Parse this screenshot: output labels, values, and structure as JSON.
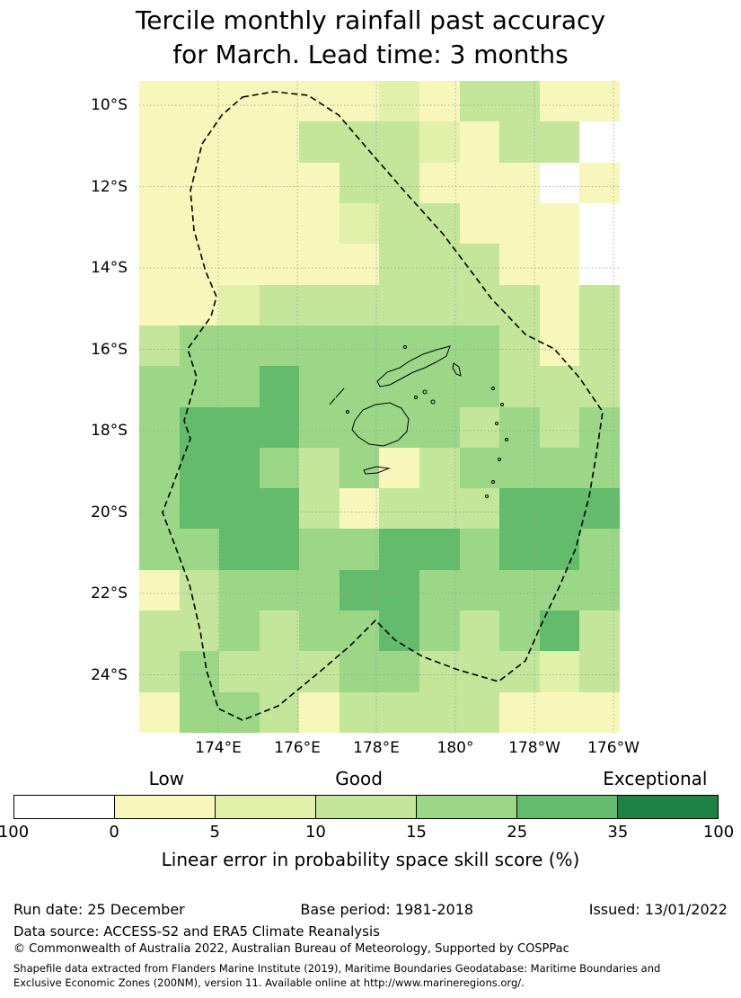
{
  "title": {
    "line1": "Tercile monthly rainfall past accuracy",
    "line2": "for March. Lead time: 3 months"
  },
  "chart_data": {
    "type": "heatmap",
    "title": "Tercile monthly rainfall past accuracy for March. Lead time: 3 months",
    "x_tick_labels": [
      "174°E",
      "176°E",
      "178°E",
      "180°",
      "178°W",
      "176°W"
    ],
    "y_tick_labels": [
      "10°S",
      "12°S",
      "14°S",
      "16°S",
      "18°S",
      "20°S",
      "22°S",
      "24°S"
    ],
    "grid_rows": 16,
    "grid_cols": 12,
    "palette": [
      "#ffffff",
      "#f7f7bb",
      "#e2f1a9",
      "#c3e69b",
      "#9bd787",
      "#63bb6c",
      "#1e8245"
    ],
    "grid": [
      [
        1,
        1,
        1,
        1,
        1,
        1,
        2,
        1,
        3,
        3,
        1,
        1
      ],
      [
        1,
        1,
        1,
        1,
        3,
        3,
        3,
        2,
        1,
        3,
        3,
        0
      ],
      [
        1,
        1,
        1,
        1,
        1,
        3,
        3,
        1,
        1,
        1,
        0,
        1
      ],
      [
        1,
        1,
        1,
        1,
        1,
        2,
        3,
        3,
        1,
        1,
        1,
        0
      ],
      [
        1,
        1,
        1,
        1,
        1,
        1,
        3,
        3,
        3,
        1,
        1,
        0
      ],
      [
        1,
        1,
        2,
        3,
        3,
        3,
        3,
        3,
        3,
        3,
        1,
        3
      ],
      [
        3,
        4,
        4,
        4,
        4,
        4,
        4,
        4,
        4,
        3,
        1,
        3
      ],
      [
        4,
        4,
        4,
        5,
        4,
        4,
        4,
        4,
        4,
        3,
        3,
        3
      ],
      [
        4,
        5,
        5,
        5,
        4,
        4,
        4,
        4,
        3,
        4,
        3,
        4
      ],
      [
        4,
        5,
        5,
        4,
        3,
        4,
        1,
        3,
        4,
        4,
        4,
        4
      ],
      [
        4,
        5,
        5,
        5,
        3,
        1,
        3,
        3,
        3,
        5,
        5,
        5
      ],
      [
        4,
        4,
        5,
        5,
        4,
        4,
        5,
        5,
        4,
        5,
        5,
        4
      ],
      [
        1,
        3,
        4,
        4,
        4,
        5,
        5,
        4,
        4,
        4,
        4,
        4
      ],
      [
        3,
        3,
        4,
        3,
        4,
        4,
        5,
        4,
        3,
        4,
        5,
        3
      ],
      [
        3,
        4,
        3,
        3,
        3,
        4,
        4,
        3,
        3,
        3,
        2,
        3
      ],
      [
        1,
        4,
        4,
        3,
        1,
        3,
        3,
        3,
        3,
        1,
        1,
        1
      ]
    ],
    "colorbar": {
      "category_labels": [
        "Low",
        "Good",
        "Exceptional"
      ],
      "category_positions_pct": [
        21.7,
        49,
        91
      ],
      "tick_labels": [
        "100",
        "0",
        "5",
        "10",
        "15",
        "25",
        "35",
        "100"
      ],
      "segment_colors": [
        "#ffffff",
        "#f7f7bb",
        "#e2f1a9",
        "#c3e69b",
        "#9bd787",
        "#63bb6c",
        "#1e8245"
      ],
      "caption": "Linear error in probability space skill score (%)"
    }
  },
  "footer": {
    "run_date": "Run date: 25 December",
    "base_period": "Base period: 1981-2018",
    "issued": "Issued: 13/01/2022",
    "data_source": "Data source: ACCESS-S2 and ERA5 Climate Reanalysis",
    "copyright": "© Commonwealth of Australia 2022, Australian Bureau of Meteorology, Supported by COSPPac",
    "shapefile_line1": "Shapefile data extracted from Flanders Marine Institute (2019), Maritime Boundaries Geodatabase: Maritime Boundaries and",
    "shapefile_line2": "Exclusive Economic Zones (200NM), version 11. Available online at http://www.marineregions.org/."
  }
}
